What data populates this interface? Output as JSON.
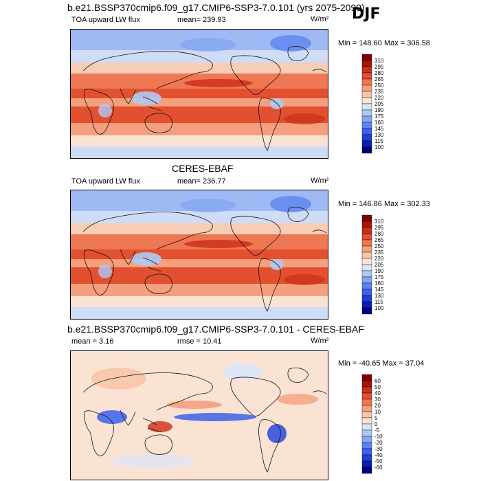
{
  "figure": {
    "season": "DJF",
    "panel_titles": [
      "b.e21.BSSP370cmip6.f09_g17.CMIP6-SSP3-7.0.101 (yrs 2075-2099)",
      "CERES-EBAF",
      "b.e21.BSSP370cmip6.f09_g17.CMIP6-SSP3-7.0.101 - CERES-EBAF"
    ]
  },
  "chart_data": [
    {
      "type": "heatmap",
      "title": "b.e21.BSSP370cmip6.f09_g17.CMIP6-SSP3-7.0.101 (yrs 2075-2099)",
      "variable": "TOA upward LW flux",
      "units": "W/m²",
      "stat_text": "mean= 239.93",
      "mean": 239.93,
      "min": 148.6,
      "max": 306.58,
      "minmax_text": "Min = 148.60 Max = 306.58",
      "colorbar_levels": [
        100,
        115,
        130,
        145,
        160,
        175,
        190,
        205,
        220,
        235,
        250,
        265,
        280,
        295,
        310
      ],
      "colorbar_labels": [
        "310",
        "295",
        "280",
        "265",
        "250",
        "235",
        "220",
        "205",
        "190",
        "175",
        "160",
        "145",
        "130",
        "115",
        "100"
      ],
      "colors": [
        "#000080",
        "#0a1fb0",
        "#1c3fd8",
        "#3a62ea",
        "#5c84f0",
        "#84a6f4",
        "#b0c8f6",
        "#dae5fa",
        "#fbe3d4",
        "#f9c4a9",
        "#f59f7e",
        "#ee7754",
        "#e2502f",
        "#cc2d16",
        "#a5150a",
        "#800000"
      ]
    },
    {
      "type": "heatmap",
      "title": "CERES-EBAF",
      "variable": "TOA upward LW flux",
      "units": "W/m²",
      "stat_text": "mean= 236.77",
      "mean": 236.77,
      "min": 146.86,
      "max": 302.33,
      "minmax_text": "Min = 146.86 Max = 302.33",
      "colorbar_levels": [
        100,
        115,
        130,
        145,
        160,
        175,
        190,
        205,
        220,
        235,
        250,
        265,
        280,
        295,
        310
      ],
      "colorbar_labels": [
        "310",
        "295",
        "280",
        "265",
        "250",
        "235",
        "220",
        "205",
        "190",
        "175",
        "160",
        "145",
        "130",
        "115",
        "100"
      ],
      "colors": [
        "#000080",
        "#0a1fb0",
        "#1c3fd8",
        "#3a62ea",
        "#5c84f0",
        "#84a6f4",
        "#b0c8f6",
        "#dae5fa",
        "#fbe3d4",
        "#f9c4a9",
        "#f59f7e",
        "#ee7754",
        "#e2502f",
        "#cc2d16",
        "#a5150a",
        "#800000"
      ]
    },
    {
      "type": "heatmap",
      "title": "b.e21.BSSP370cmip6.f09_g17.CMIP6-SSP3-7.0.101 - CERES-EBAF",
      "units": "W/m²",
      "stat_text": "mean =   3.16",
      "stat2_text": "rmse =  10.41",
      "mean": 3.16,
      "rmse": 10.41,
      "min": -40.65,
      "max": 37.04,
      "minmax_text": "Min = -40.65 Max =  37.04",
      "colorbar_levels": [
        -60,
        -50,
        -40,
        -30,
        -20,
        -10,
        -5,
        0,
        5,
        10,
        20,
        30,
        40,
        50,
        60
      ],
      "colorbar_labels": [
        "60",
        "50",
        "40",
        "30",
        "20",
        "10",
        "5",
        "0",
        "-5",
        "-10",
        "-20",
        "-30",
        "-40",
        "-50",
        "-60"
      ],
      "colors": [
        "#000080",
        "#0a1fb0",
        "#1c3fd8",
        "#3a62ea",
        "#5c84f0",
        "#84a6f4",
        "#b0c8f6",
        "#dae5fa",
        "#fbe3d4",
        "#f9c4a9",
        "#f59f7e",
        "#ee7754",
        "#e2502f",
        "#cc2d16",
        "#a5150a",
        "#800000"
      ]
    }
  ]
}
